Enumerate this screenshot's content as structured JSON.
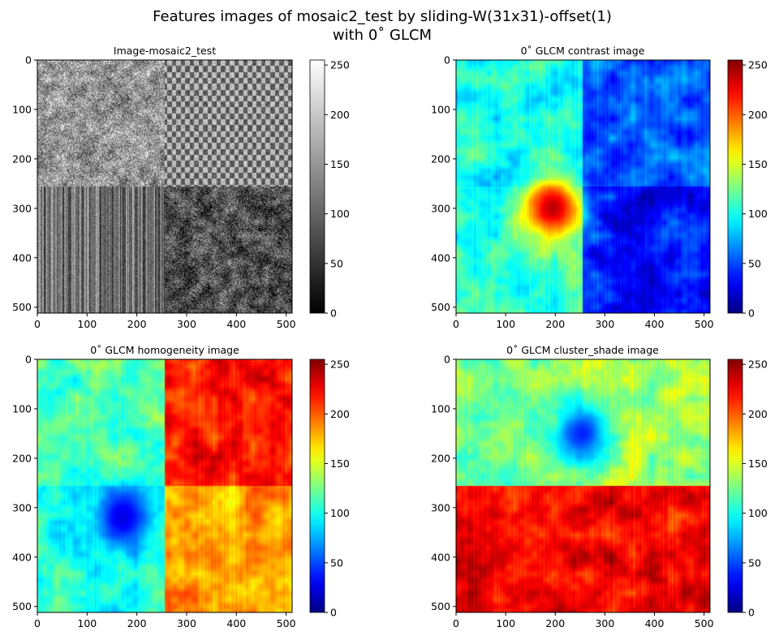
{
  "figure": {
    "title_line1": "Features images of mosaic2_test by sliding-W(31x31)-offset(1)",
    "title_line2": "with 0˚ GLCM"
  },
  "chart_data": [
    {
      "type": "heatmap",
      "title": "Image-mosaic2_test",
      "colormap": "gray",
      "xlim": [
        0,
        512
      ],
      "ylim": [
        512,
        0
      ],
      "x_ticks": [
        "0",
        "100",
        "200",
        "300",
        "400",
        "500"
      ],
      "y_ticks": [
        "0",
        "100",
        "200",
        "300",
        "400",
        "500"
      ],
      "colorbar": {
        "range": [
          0,
          255
        ],
        "ticks": [
          "0",
          "50",
          "100",
          "150",
          "200",
          "250"
        ]
      },
      "quadrant_levels": {
        "top_left": 150,
        "top_right": 140,
        "bottom_left": 110,
        "bottom_right": 80
      },
      "texture": "photograph"
    },
    {
      "type": "heatmap",
      "title": "0˚ GLCM contrast image",
      "colormap": "jet",
      "xlim": [
        0,
        512
      ],
      "ylim": [
        512,
        0
      ],
      "x_ticks": [
        "0",
        "100",
        "200",
        "300",
        "400",
        "500"
      ],
      "y_ticks": [
        "0",
        "100",
        "200",
        "300",
        "400",
        "500"
      ],
      "colorbar": {
        "range": [
          0,
          255
        ],
        "ticks": [
          "0",
          "50",
          "100",
          "150",
          "200",
          "250"
        ]
      },
      "quadrant_levels": {
        "top_left": 100,
        "top_right": 55,
        "bottom_left": 110,
        "bottom_right": 35
      },
      "hotspot": {
        "x": 195,
        "y": 300,
        "value": 240
      }
    },
    {
      "type": "heatmap",
      "title": "0˚ GLCM homogeneity image",
      "colormap": "jet",
      "xlim": [
        0,
        512
      ],
      "ylim": [
        512,
        0
      ],
      "x_ticks": [
        "0",
        "100",
        "200",
        "300",
        "400",
        "500"
      ],
      "y_ticks": [
        "0",
        "100",
        "200",
        "300",
        "400",
        "500"
      ],
      "colorbar": {
        "range": [
          0,
          255
        ],
        "ticks": [
          "0",
          "50",
          "100",
          "150",
          "200",
          "250"
        ]
      },
      "quadrant_levels": {
        "top_left": 115,
        "top_right": 215,
        "bottom_left": 100,
        "bottom_right": 185
      },
      "lowspot": {
        "x": 170,
        "y": 320,
        "value": 25
      }
    },
    {
      "type": "heatmap",
      "title": "0˚ GLCM cluster_shade image",
      "colormap": "jet",
      "xlim": [
        0,
        512
      ],
      "ylim": [
        512,
        0
      ],
      "x_ticks": [
        "0",
        "100",
        "200",
        "300",
        "400",
        "500"
      ],
      "y_ticks": [
        "0",
        "100",
        "200",
        "300",
        "400",
        "500"
      ],
      "colorbar": {
        "range": [
          0,
          255
        ],
        "ticks": [
          "0",
          "50",
          "100",
          "150",
          "200",
          "250"
        ]
      },
      "quadrant_levels": {
        "top_left": 125,
        "top_right": 140,
        "bottom_left": 225,
        "bottom_right": 225
      },
      "lowspot": {
        "x": 255,
        "y": 150,
        "value": 40
      }
    }
  ]
}
